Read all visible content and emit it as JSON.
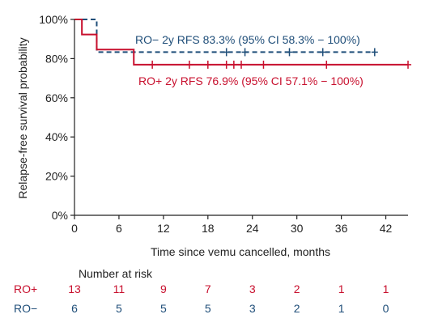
{
  "chart_data": {
    "type": "line",
    "title": "",
    "xlabel": "Time since vemu cancelled, months",
    "ylabel": "Relapse-free survival probability",
    "xlim": [
      0,
      45
    ],
    "ylim": [
      0,
      100
    ],
    "x_ticks": [
      0,
      6,
      12,
      18,
      24,
      30,
      36,
      42
    ],
    "y_ticks": [
      0,
      20,
      40,
      60,
      80,
      100
    ],
    "y_tick_labels": [
      "0%",
      "20%",
      "40%",
      "60%",
      "80%",
      "100%"
    ],
    "colors": {
      "ro_plus": "#c8102e",
      "ro_minus": "#1f4e79"
    },
    "series": [
      {
        "name": "RO+",
        "style": "solid",
        "steps": [
          [
            0,
            100
          ],
          [
            1,
            92.3
          ],
          [
            3,
            84.6
          ],
          [
            8,
            76.9
          ],
          [
            45,
            76.9
          ]
        ],
        "censor_x": [
          10.5,
          15.5,
          18,
          20.5,
          21.5,
          22.5,
          25.5,
          34,
          45
        ]
      },
      {
        "name": "RO−",
        "style": "dashed",
        "steps": [
          [
            0,
            100
          ],
          [
            3,
            83.3
          ],
          [
            40.5,
            83.3
          ]
        ],
        "censor_x": [
          20.5,
          23,
          29,
          33.5,
          40.5
        ]
      }
    ],
    "annotations": [
      {
        "text": "RO− 2y RFS 83.3% (95% CI 58.3% − 100%)",
        "series": "RO−"
      },
      {
        "text": "RO+ 2y RFS 76.9% (95% CI 57.1% − 100%)",
        "series": "RO+"
      }
    ],
    "risk_table": {
      "title": "Number at risk",
      "rows": [
        {
          "label": "RO+",
          "counts": [
            "13",
            "11",
            "9",
            "7",
            "3",
            "2",
            "1",
            "1"
          ]
        },
        {
          "label": "RO−",
          "counts": [
            "6",
            "5",
            "5",
            "5",
            "3",
            "2",
            "1",
            "0"
          ]
        }
      ]
    }
  }
}
